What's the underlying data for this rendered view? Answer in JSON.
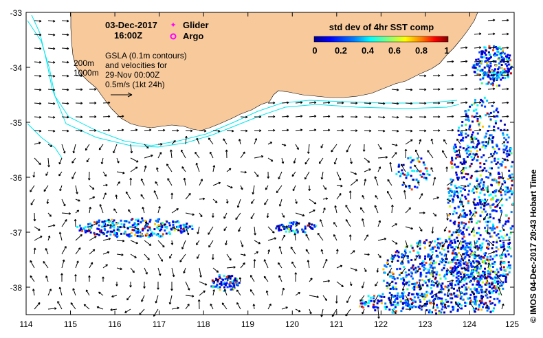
{
  "header": {
    "date": "03-Dec-2017",
    "time": "16:00Z"
  },
  "legend_markers": {
    "glider_label": "Glider",
    "argo_label": "Argo",
    "glider_color": "#ff00ff",
    "argo_color": "#ff00ff"
  },
  "contours": {
    "label_200": "200m",
    "label_1000": "1000m",
    "color": "#00e5ee"
  },
  "gsla_note": {
    "line1": "GSLA (0.1m contours)",
    "line2": "and velocities for",
    "line3": "29-Nov 00:00Z",
    "line4": "0.5m/s (1kt 24h)"
  },
  "colorbar": {
    "title": "std dev of 4hr SST comp",
    "ticks": [
      "0",
      "0.2",
      "0.4",
      "0.6",
      "0.8",
      "1"
    ],
    "colors": [
      "#00008f",
      "#0000ff",
      "#0080ff",
      "#00ffff",
      "#80ff80",
      "#ffff00",
      "#ff8000",
      "#ff0000",
      "#800000"
    ]
  },
  "axes": {
    "x_ticks": [
      "114",
      "115",
      "116",
      "117",
      "118",
      "119",
      "120",
      "121",
      "122",
      "123",
      "124",
      "125"
    ],
    "y_ticks": [
      "-33",
      "-34",
      "-35",
      "-36",
      "-37",
      "-38"
    ],
    "xlim": [
      114,
      125
    ],
    "ylim": [
      -38.5,
      -33
    ]
  },
  "credit": "IMOS 04-Dec-2017 20:43 Hobart Time",
  "land_color": "#f7c99b"
}
